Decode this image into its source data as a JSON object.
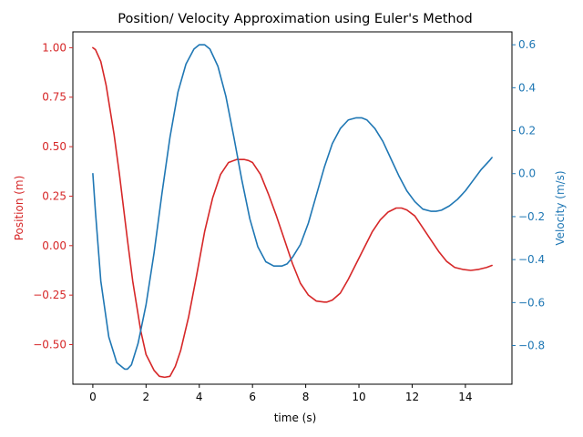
{
  "chart_data": {
    "type": "line",
    "title": "Position/ Velocity Approximation using Euler's Method",
    "xlabel": "time (s)",
    "xlim": [
      -0.75,
      15.75
    ],
    "xticks": [
      0,
      2,
      4,
      6,
      8,
      10,
      12,
      14
    ],
    "grid": false,
    "y_axes": [
      {
        "side": "left",
        "label": "Position (m)",
        "color": "#d62728",
        "ylim": [
          -0.7,
          1.08
        ],
        "ticks": [
          -0.5,
          -0.25,
          0.0,
          0.25,
          0.5,
          0.75,
          1.0
        ],
        "tick_labels": [
          "−0.50",
          "−0.25",
          "0.00",
          "0.25",
          "0.50",
          "0.75",
          "1.00"
        ]
      },
      {
        "side": "right",
        "label": "Velocity (m/s)",
        "color": "#1f77b4",
        "ylim": [
          -0.98,
          0.66
        ],
        "ticks": [
          -0.8,
          -0.6,
          -0.4,
          -0.2,
          0.0,
          0.2,
          0.4,
          0.6
        ],
        "tick_labels": [
          "−0.8",
          "−0.6",
          "−0.4",
          "−0.2",
          "0.0",
          "0.2",
          "0.4",
          "0.6"
        ]
      }
    ],
    "series": [
      {
        "name": "Position",
        "axis": "left",
        "color": "#d62728",
        "x": [
          0,
          0.1,
          0.3,
          0.5,
          0.8,
          1.0,
          1.3,
          1.5,
          1.8,
          2.0,
          2.3,
          2.5,
          2.7,
          2.9,
          3.1,
          3.3,
          3.6,
          3.9,
          4.2,
          4.5,
          4.8,
          5.1,
          5.4,
          5.7,
          5.85,
          6.0,
          6.3,
          6.6,
          6.9,
          7.2,
          7.5,
          7.8,
          8.1,
          8.4,
          8.7,
          8.8,
          9.0,
          9.3,
          9.6,
          9.9,
          10.2,
          10.5,
          10.8,
          11.1,
          11.4,
          11.6,
          11.8,
          12.1,
          12.4,
          12.7,
          13.0,
          13.3,
          13.6,
          13.9,
          14.2,
          14.5,
          14.8,
          15.0
        ],
        "y": [
          1.0,
          0.99,
          0.93,
          0.81,
          0.56,
          0.36,
          0.03,
          -0.18,
          -0.43,
          -0.55,
          -0.63,
          -0.66,
          -0.665,
          -0.66,
          -0.61,
          -0.53,
          -0.36,
          -0.15,
          0.07,
          0.24,
          0.36,
          0.42,
          0.435,
          0.435,
          0.43,
          0.42,
          0.36,
          0.26,
          0.15,
          0.03,
          -0.09,
          -0.19,
          -0.25,
          -0.28,
          -0.285,
          -0.285,
          -0.275,
          -0.24,
          -0.17,
          -0.09,
          -0.01,
          0.07,
          0.13,
          0.17,
          0.19,
          0.19,
          0.18,
          0.15,
          0.09,
          0.03,
          -0.03,
          -0.08,
          -0.11,
          -0.12,
          -0.125,
          -0.12,
          -0.11,
          -0.1
        ]
      },
      {
        "name": "Velocity",
        "axis": "right",
        "color": "#1f77b4",
        "x": [
          0,
          0.1,
          0.3,
          0.6,
          0.9,
          1.2,
          1.3,
          1.45,
          1.7,
          2.0,
          2.3,
          2.6,
          2.9,
          3.2,
          3.5,
          3.8,
          4.0,
          4.2,
          4.4,
          4.7,
          5.0,
          5.3,
          5.6,
          5.9,
          6.2,
          6.5,
          6.8,
          7.1,
          7.3,
          7.5,
          7.8,
          8.1,
          8.4,
          8.7,
          9.0,
          9.3,
          9.6,
          9.9,
          10.1,
          10.3,
          10.6,
          10.9,
          11.2,
          11.5,
          11.8,
          12.1,
          12.4,
          12.7,
          12.9,
          13.1,
          13.4,
          13.7,
          14.0,
          14.3,
          14.6,
          14.9,
          15.0
        ],
        "y": [
          0.0,
          -0.18,
          -0.5,
          -0.76,
          -0.88,
          -0.91,
          -0.91,
          -0.89,
          -0.79,
          -0.61,
          -0.37,
          -0.09,
          0.17,
          0.38,
          0.51,
          0.58,
          0.6,
          0.6,
          0.58,
          0.5,
          0.36,
          0.17,
          -0.03,
          -0.21,
          -0.34,
          -0.41,
          -0.43,
          -0.43,
          -0.42,
          -0.39,
          -0.33,
          -0.23,
          -0.1,
          0.03,
          0.14,
          0.21,
          0.25,
          0.26,
          0.26,
          0.25,
          0.21,
          0.15,
          0.07,
          -0.01,
          -0.08,
          -0.13,
          -0.165,
          -0.175,
          -0.175,
          -0.17,
          -0.15,
          -0.12,
          -0.08,
          -0.03,
          0.02,
          0.06,
          0.075
        ]
      }
    ]
  }
}
